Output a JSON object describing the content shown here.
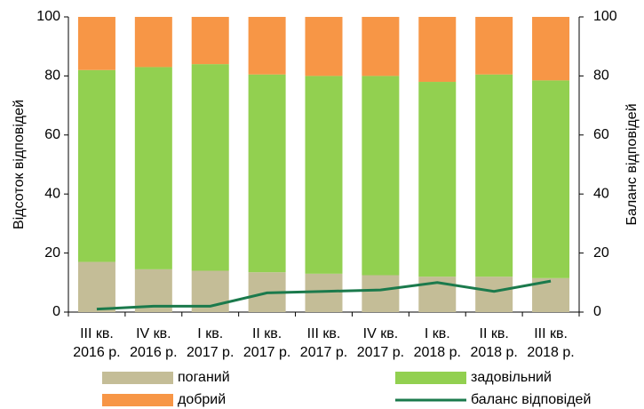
{
  "chart_data": {
    "type": "bar",
    "categories": [
      [
        "ІІІ кв.",
        "2016 р."
      ],
      [
        "ІV кв.",
        "2016 р."
      ],
      [
        "І кв.",
        "2017 р."
      ],
      [
        "ІІ кв.",
        "2017 р."
      ],
      [
        "ІІІ кв.",
        "2017 р."
      ],
      [
        "ІV кв.",
        "2017 р."
      ],
      [
        "І кв.",
        "2018 р."
      ],
      [
        "ІІ кв.",
        "2018 р."
      ],
      [
        "ІІІ кв.",
        "2018 р."
      ]
    ],
    "stacked": true,
    "series": [
      {
        "name": "поганий",
        "color": "#c4bd97",
        "values": [
          17,
          14.5,
          14,
          13.5,
          13,
          12.5,
          12,
          12,
          11.5
        ]
      },
      {
        "name": "задовільний",
        "color": "#92d050",
        "values": [
          65,
          68.5,
          70,
          67,
          67,
          67.5,
          66,
          68.5,
          67
        ]
      },
      {
        "name": "добрий",
        "color": "#f79646",
        "values": [
          18,
          17,
          16,
          19.5,
          20,
          20,
          22,
          19.5,
          21.5
        ]
      },
      {
        "name": "баланс відповідей",
        "type": "line",
        "axis": "y2",
        "color": "#1b7a4c",
        "values": [
          1,
          2,
          2,
          6.5,
          7,
          7.5,
          10,
          7,
          10.5
        ]
      }
    ],
    "ylabel": "Відсоток відповідей",
    "y2label": "Баланс відповідей",
    "ylim": [
      0,
      100
    ],
    "yticks": [
      0,
      20,
      40,
      60,
      80,
      100
    ],
    "y2lim": [
      0,
      100
    ],
    "y2ticks": [
      0,
      20,
      40,
      60,
      80,
      100
    ]
  }
}
